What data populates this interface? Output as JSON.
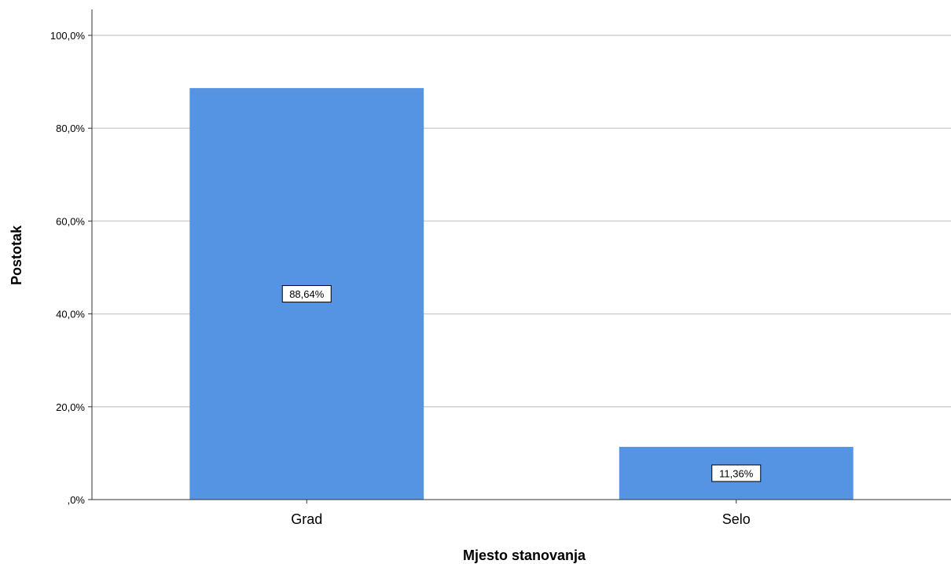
{
  "chart_data": {
    "type": "bar",
    "categories": [
      "Grad",
      "Selo"
    ],
    "values": [
      88.64,
      11.36
    ],
    "data_labels": [
      "88,64%",
      "11,36%"
    ],
    "xlabel": "Mjesto stanovanja",
    "ylabel": "Postotak",
    "ylim": [
      0,
      100
    ],
    "yticks": [
      0,
      20,
      40,
      60,
      80,
      100
    ],
    "ytick_labels": [
      ",0%",
      "20,0%",
      "40,0%",
      "60,0%",
      "80,0%",
      "100,0%"
    ],
    "grid": true,
    "legend": "none",
    "bar_color": "#5594e2",
    "grid_color": "#d0d0d0"
  }
}
